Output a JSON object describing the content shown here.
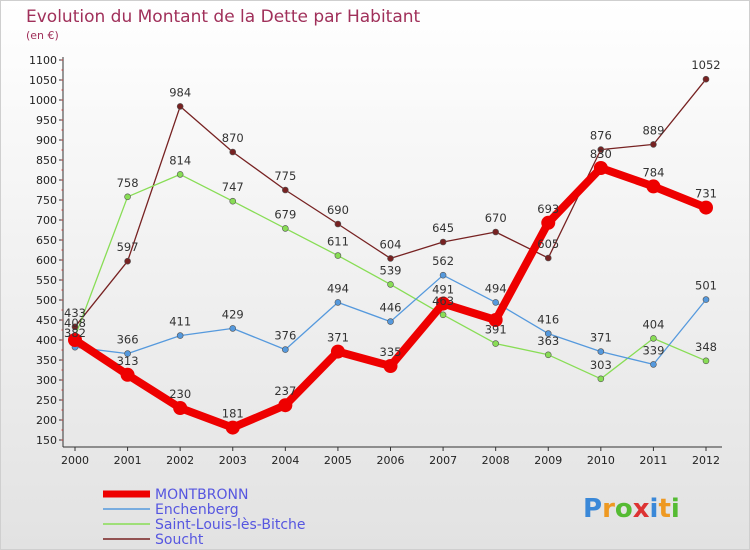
{
  "title": "Evolution du Montant de la Dette par Habitant",
  "subtitle": "(en €)",
  "brand": "Proxiti",
  "colors": {
    "background_top": "#ffffff",
    "background_bottom": "#e2e2e2",
    "title": "#a0305a",
    "legend_text": "#5656e0"
  },
  "chart_data": {
    "type": "line",
    "title": "Evolution du Montant de la Dette par Habitant",
    "subtitle": "(en €)",
    "xlabel": "",
    "ylabel": "",
    "x": [
      "2000",
      "2001",
      "2002",
      "2003",
      "2004",
      "2005",
      "2006",
      "2007",
      "2008",
      "2009",
      "2010",
      "2011",
      "2012"
    ],
    "ylim": [
      150,
      1100
    ],
    "yticks": [
      150,
      200,
      250,
      300,
      350,
      400,
      450,
      500,
      550,
      600,
      650,
      700,
      750,
      800,
      850,
      900,
      950,
      1000,
      1050,
      1100
    ],
    "grid": false,
    "legend_position": "bottom-left",
    "series": [
      {
        "name": "MONTBRONN",
        "color": "#ee0000",
        "values": [
          400,
          313,
          230,
          181,
          237,
          371,
          335,
          491,
          450,
          693,
          830,
          784,
          731
        ],
        "labels": [
          "",
          "313",
          "230",
          "181",
          "237",
          "371",
          "335",
          "491",
          "",
          "693",
          "830",
          "784",
          "731"
        ]
      },
      {
        "name": "Enchenberg",
        "color": "#5599dd",
        "values": [
          382,
          366,
          411,
          429,
          376,
          494,
          446,
          562,
          494,
          416,
          371,
          339,
          501
        ],
        "labels": [
          "382",
          "366",
          "411",
          "429",
          "376",
          "494",
          "446",
          "562",
          "494",
          "416",
          "371",
          "339",
          "501"
        ]
      },
      {
        "name": "Saint-Louis-lès-Bitche",
        "color": "#88dd55",
        "values": [
          408,
          758,
          814,
          747,
          679,
          611,
          539,
          463,
          391,
          363,
          303,
          404,
          348
        ],
        "labels": [
          "408",
          "758",
          "814",
          "747",
          "679",
          "611",
          "539",
          "463",
          "391",
          "363",
          "303",
          "404",
          "348"
        ]
      },
      {
        "name": "Soucht",
        "color": "#772222",
        "values": [
          433,
          597,
          984,
          870,
          775,
          690,
          604,
          645,
          670,
          605,
          876,
          889,
          1052
        ],
        "labels": [
          "433",
          "597",
          "984",
          "870",
          "775",
          "690",
          "604",
          "645",
          "670",
          "605",
          "876",
          "889",
          "1052"
        ]
      }
    ]
  }
}
